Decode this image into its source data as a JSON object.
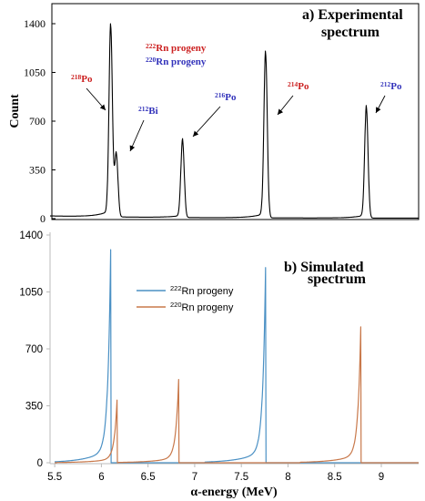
{
  "colors": {
    "rn222": "#cc2222",
    "rn220": "#3333bb",
    "sim222": "#4a90c4",
    "sim220": "#c8784a"
  },
  "chart_data": [
    {
      "type": "line",
      "panel_label": "a) Experimental",
      "panel_label_2": "spectrum",
      "ylabel": "Count",
      "ylim": [
        0,
        1400
      ],
      "yticks": [
        "0",
        "350",
        "700",
        "1050",
        "1400"
      ],
      "legend": {
        "items": [
          {
            "sup": "222",
            "text": "Rn progeny",
            "color": "#cc2222"
          },
          {
            "sup": "220",
            "text": "Rn progeny",
            "color": "#3333bb"
          }
        ]
      },
      "annotations": [
        {
          "sup": "218",
          "text": "Po",
          "color": "#cc2222",
          "x": 6.1
        },
        {
          "sup": "212",
          "text": "Bi",
          "color": "#3333bb",
          "x": 6.15
        },
        {
          "sup": "216",
          "text": "Po",
          "color": "#3333bb",
          "x": 6.87
        },
        {
          "sup": "214",
          "text": "Po",
          "color": "#cc2222",
          "x": 7.76
        },
        {
          "sup": "212",
          "text": "Po",
          "color": "#3333bb",
          "x": 8.84
        }
      ],
      "peaks": [
        {
          "x": 6.1,
          "y": 1350
        },
        {
          "x": 6.16,
          "y": 450
        },
        {
          "x": 6.87,
          "y": 550
        },
        {
          "x": 7.76,
          "y": 1170
        },
        {
          "x": 8.84,
          "y": 790
        }
      ]
    },
    {
      "type": "line",
      "panel_label": "b) Simulated",
      "panel_label_2": "spectrum",
      "xlabel": "α-energy (MeV)",
      "ylim": [
        0,
        1400
      ],
      "xlim": [
        5.45,
        9.4
      ],
      "xticks": [
        "5.5",
        "6",
        "6.5",
        "7",
        "7.5",
        "8",
        "8.5",
        "9"
      ],
      "yticks": [
        "0",
        "350",
        "700",
        "1050",
        "1400"
      ],
      "legend": {
        "items": [
          {
            "sup": "222",
            "text": "Rn progeny",
            "color": "#4a90c4"
          },
          {
            "sup": "220",
            "text": "Rn progeny",
            "color": "#c8784a"
          }
        ]
      },
      "series": [
        {
          "peaks": [
            {
              "x": 6.1,
              "y": 1310
            },
            {
              "x": 7.76,
              "y": 1200
            }
          ]
        },
        {
          "peaks": [
            {
              "x": 6.17,
              "y": 410
            },
            {
              "x": 6.83,
              "y": 545
            },
            {
              "x": 8.78,
              "y": 835
            }
          ]
        }
      ]
    }
  ]
}
